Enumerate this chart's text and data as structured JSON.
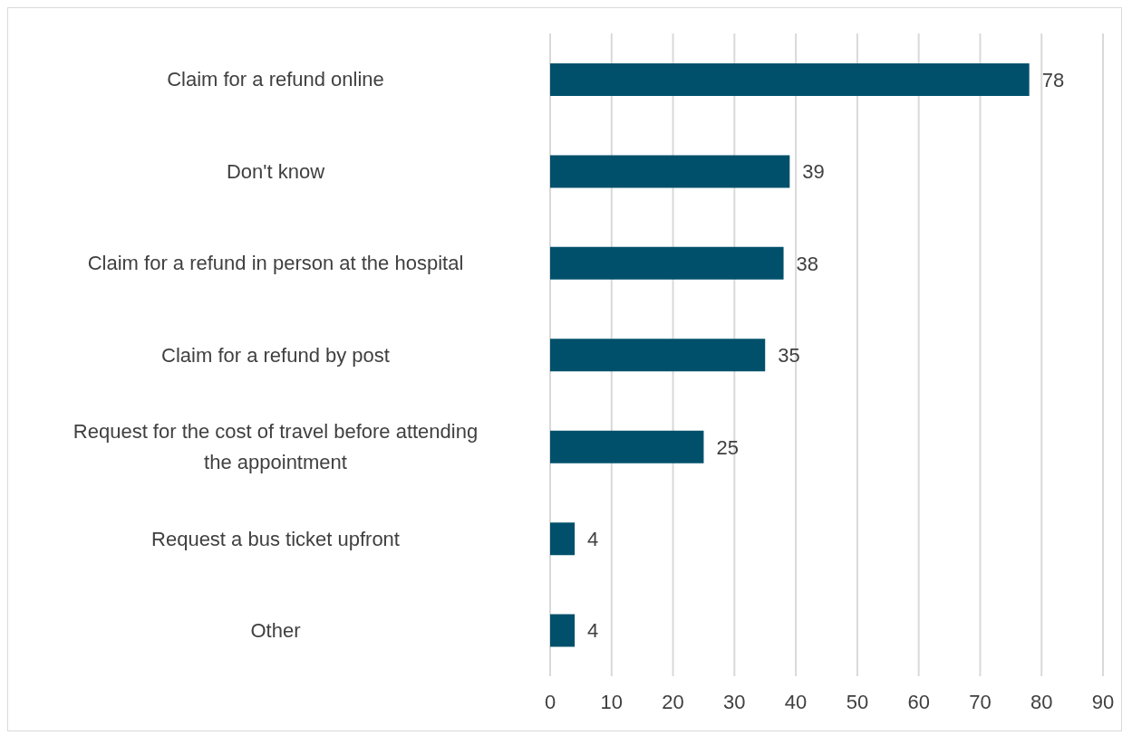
{
  "chart_data": {
    "type": "bar",
    "orientation": "horizontal",
    "categories": [
      "Claim for a refund online",
      "Don't know",
      "Claim for a refund in person at the hospital",
      "Claim for a refund by post",
      "Request for the cost of travel before attending the appointment",
      "Request a bus ticket upfront",
      "Other"
    ],
    "values": [
      78,
      39,
      38,
      35,
      25,
      4,
      4
    ],
    "color": "#00506b",
    "xlim": [
      0,
      90
    ],
    "xticks": [
      0,
      10,
      20,
      30,
      40,
      50,
      60,
      70,
      80,
      90
    ],
    "grid": "x",
    "data_labels": true
  }
}
